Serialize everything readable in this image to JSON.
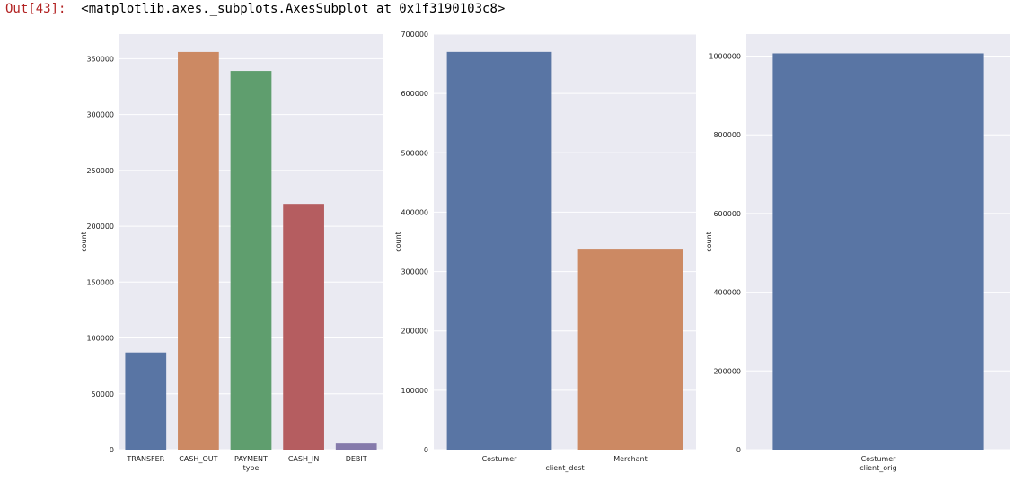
{
  "output": {
    "prompt": "Out[43]:",
    "text": "<matplotlib.axes._subplots.AxesSubplot at 0x1f3190103c8>"
  },
  "style": {
    "background": "#eaeaf2",
    "grid": "#ffffff"
  },
  "chart_data": [
    {
      "type": "bar",
      "categories": [
        "TRANSFER",
        "CASH_OUT",
        "PAYMENT",
        "CASH_IN",
        "DEBIT"
      ],
      "values": [
        87000,
        356000,
        339000,
        220000,
        5500
      ],
      "colors": [
        "#5975a4",
        "#cc8963",
        "#5f9e6e",
        "#b55d60",
        "#857aab"
      ],
      "xlabel": "type",
      "ylabel": "count",
      "ylim": [
        0,
        372000
      ],
      "yticks": [
        0,
        50000,
        100000,
        150000,
        200000,
        250000,
        300000,
        350000
      ],
      "grid": true
    },
    {
      "type": "bar",
      "categories": [
        "Costumer",
        "Merchant"
      ],
      "values": [
        670000,
        337000
      ],
      "colors": [
        "#5975a4",
        "#cc8963"
      ],
      "xlabel": "client_dest",
      "ylabel": "count",
      "ylim": [
        0,
        700000
      ],
      "yticks": [
        0,
        100000,
        200000,
        300000,
        400000,
        500000,
        600000,
        700000
      ],
      "grid": true
    },
    {
      "type": "bar",
      "categories": [
        "Costumer"
      ],
      "values": [
        1007000
      ],
      "colors": [
        "#5975a4"
      ],
      "xlabel": "client_orig",
      "ylabel": "count",
      "ylim": [
        0,
        1056000
      ],
      "yticks": [
        0,
        200000,
        400000,
        600000,
        800000,
        1000000
      ],
      "grid": true
    }
  ]
}
